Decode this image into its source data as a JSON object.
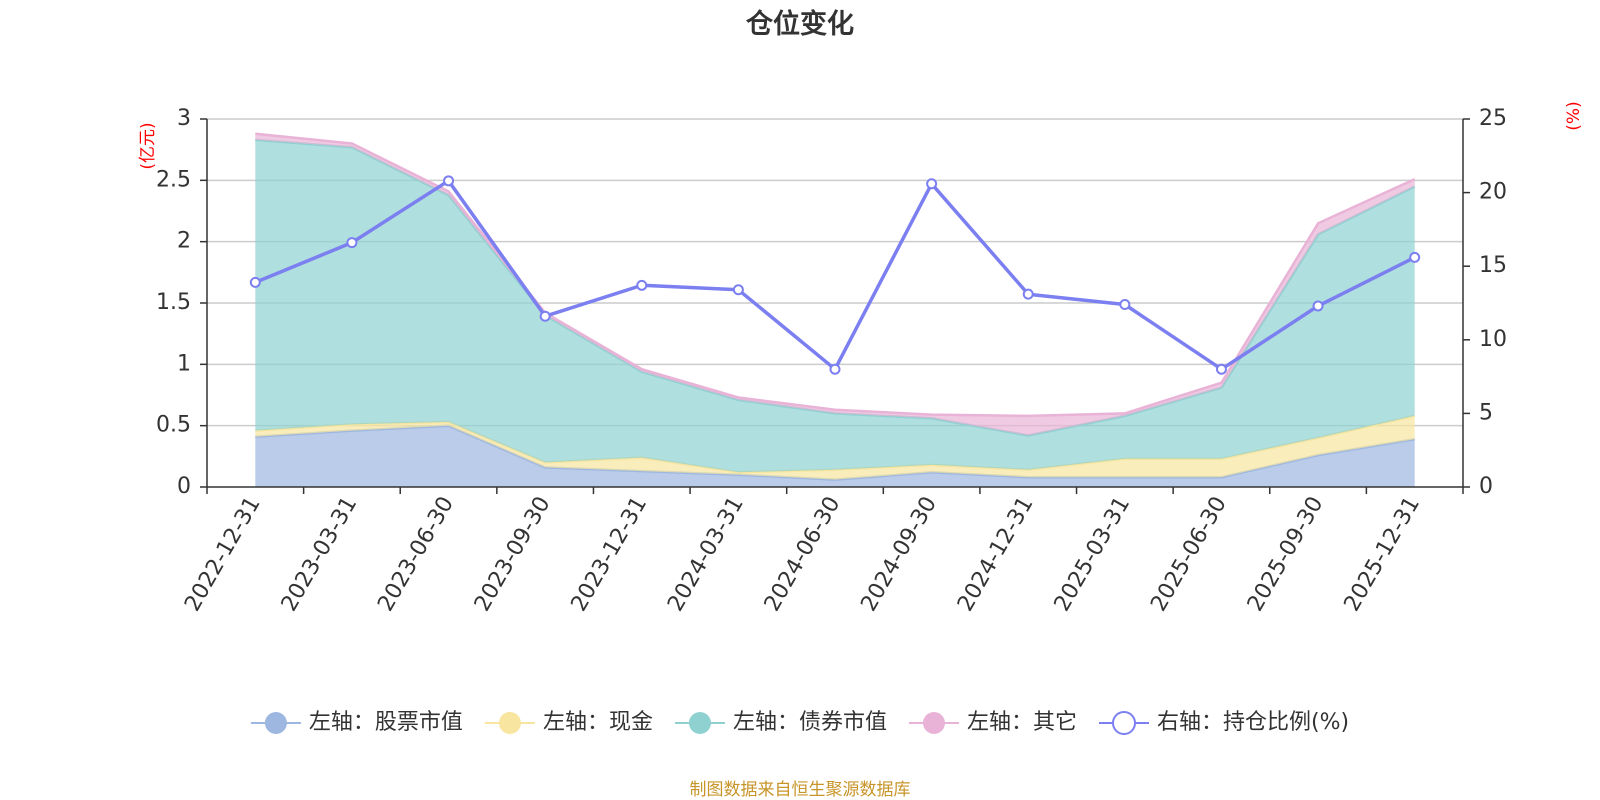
{
  "chart_data": {
    "type": "area",
    "title": "仓位变化",
    "left_unit": "(亿元)",
    "right_unit": "(%)",
    "categories": [
      "2022-12-31",
      "2023-03-31",
      "2023-06-30",
      "2023-09-30",
      "2023-12-31",
      "2024-03-31",
      "2024-06-30",
      "2024-09-30",
      "2024-12-31",
      "2025-03-31",
      "2025-06-30",
      "2025-09-30",
      "2025-12-31"
    ],
    "left_axis": {
      "min": 0,
      "max": 3,
      "ticks": [
        0,
        0.5,
        1,
        1.5,
        2,
        2.5,
        3
      ],
      "tick_labels": [
        "0",
        "0.5",
        "1",
        "1.5",
        "2",
        "2.5",
        "3"
      ]
    },
    "right_axis": {
      "min": 0,
      "max": 25,
      "ticks": [
        0,
        5,
        10,
        15,
        20,
        25
      ],
      "tick_labels": [
        "0",
        "5",
        "10",
        "15",
        "20",
        "25"
      ]
    },
    "stacked_series": [
      {
        "name": "左轴：股票市值",
        "color": "#9db7e0",
        "values": [
          0.41,
          0.46,
          0.5,
          0.16,
          0.13,
          0.1,
          0.06,
          0.12,
          0.08,
          0.08,
          0.08,
          0.26,
          0.39
        ]
      },
      {
        "name": "左轴：现金",
        "color": "#f7e5a0",
        "values": [
          0.05,
          0.05,
          0.03,
          0.04,
          0.11,
          0.02,
          0.08,
          0.06,
          0.06,
          0.15,
          0.15,
          0.14,
          0.19
        ]
      },
      {
        "name": "左轴：债券市值",
        "color": "#8fd1d1",
        "values": [
          2.37,
          2.26,
          1.85,
          1.2,
          0.7,
          0.59,
          0.46,
          0.38,
          0.28,
          0.35,
          0.58,
          1.66,
          1.87
        ]
      },
      {
        "name": "左轴：其它",
        "color": "#e8b3d6",
        "values": [
          0.05,
          0.03,
          0.03,
          0.02,
          0.02,
          0.02,
          0.03,
          0.03,
          0.16,
          0.02,
          0.04,
          0.09,
          0.06
        ]
      }
    ],
    "line_series": {
      "name": "右轴：持仓比例(%)",
      "color": "#7b7ff0",
      "values": [
        13.9,
        16.6,
        20.8,
        11.6,
        13.7,
        13.4,
        8.0,
        20.6,
        13.1,
        12.4,
        8.0,
        12.3,
        15.6
      ]
    },
    "source_note": "制图数据来自恒生聚源数据库"
  }
}
